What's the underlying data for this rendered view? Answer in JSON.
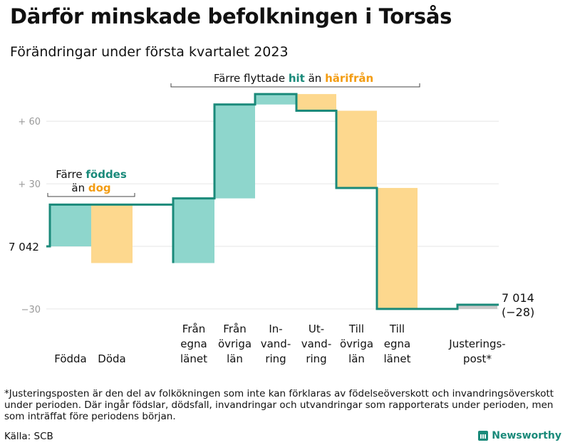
{
  "title": "Därför minskade befolkningen i Torsås",
  "subtitle": "Förändringar under första kvartalet 2023",
  "footnote": "*Justeringsposten är den del av folkökningen som inte kan förklaras av födelseöverskott och invandringsöverskott under perioden. Där ingår födslar, dödsfall, invandringar och utvandringar som rapporterats under perioden, men som inträffat före periodens början.",
  "source": "Källa: SCB",
  "brand": "Newsworthy",
  "colors": {
    "teal_line": "#1a8a7a",
    "teal_fill": "#8ed6cc",
    "orange_fill": "#fdd88e",
    "orange_text": "#f39c12",
    "grey_fill": "#c8c8c8",
    "grid": "#e6e6e6"
  },
  "annotations": {
    "births": {
      "line1_pre": "Färre ",
      "line1_hi": "föddes",
      "line2_pre": "än ",
      "line2_hi": "dog"
    },
    "moves": {
      "pre": "Färre flyttade ",
      "hi1": "hit",
      "mid": " än ",
      "hi2": "härifrån"
    }
  },
  "start_label": "7 042",
  "end_label": "7 014",
  "end_change": "(−28)",
  "chart_data": {
    "type": "waterfall",
    "title": "Därför minskade befolkningen i Torsås",
    "subtitle": "Förändringar under första kvartalet 2023",
    "baseline": 7042,
    "end_value": 7014,
    "net_change": -28,
    "y_ticks": [
      -30,
      30,
      60
    ],
    "y_tick_labels": [
      "−30",
      "+ 30",
      "+ 60"
    ],
    "ylim": [
      -36,
      68
    ],
    "grid": true,
    "categories": [
      {
        "label": [
          "Födda"
        ],
        "change": 20,
        "kind": "in"
      },
      {
        "label": [
          "Döda"
        ],
        "change": -28,
        "kind": "out"
      },
      {
        "label": [
          "Från",
          "egna",
          "länet"
        ],
        "change": 31,
        "kind": "in"
      },
      {
        "label": [
          "Från",
          "övriga",
          "län"
        ],
        "change": 45,
        "kind": "in"
      },
      {
        "label": [
          "In-",
          "vand-",
          "ring"
        ],
        "change": 5,
        "kind": "in"
      },
      {
        "label": [
          "Ut-",
          "vand-",
          "ring"
        ],
        "change": -8,
        "kind": "out"
      },
      {
        "label": [
          "Till",
          "övriga",
          "län"
        ],
        "change": -37,
        "kind": "out"
      },
      {
        "label": [
          "Till",
          "egna",
          "länet"
        ],
        "change": -58,
        "kind": "out"
      },
      {
        "label": [
          "Justerings-",
          "post*"
        ],
        "change": 2,
        "kind": "adjust"
      }
    ]
  }
}
